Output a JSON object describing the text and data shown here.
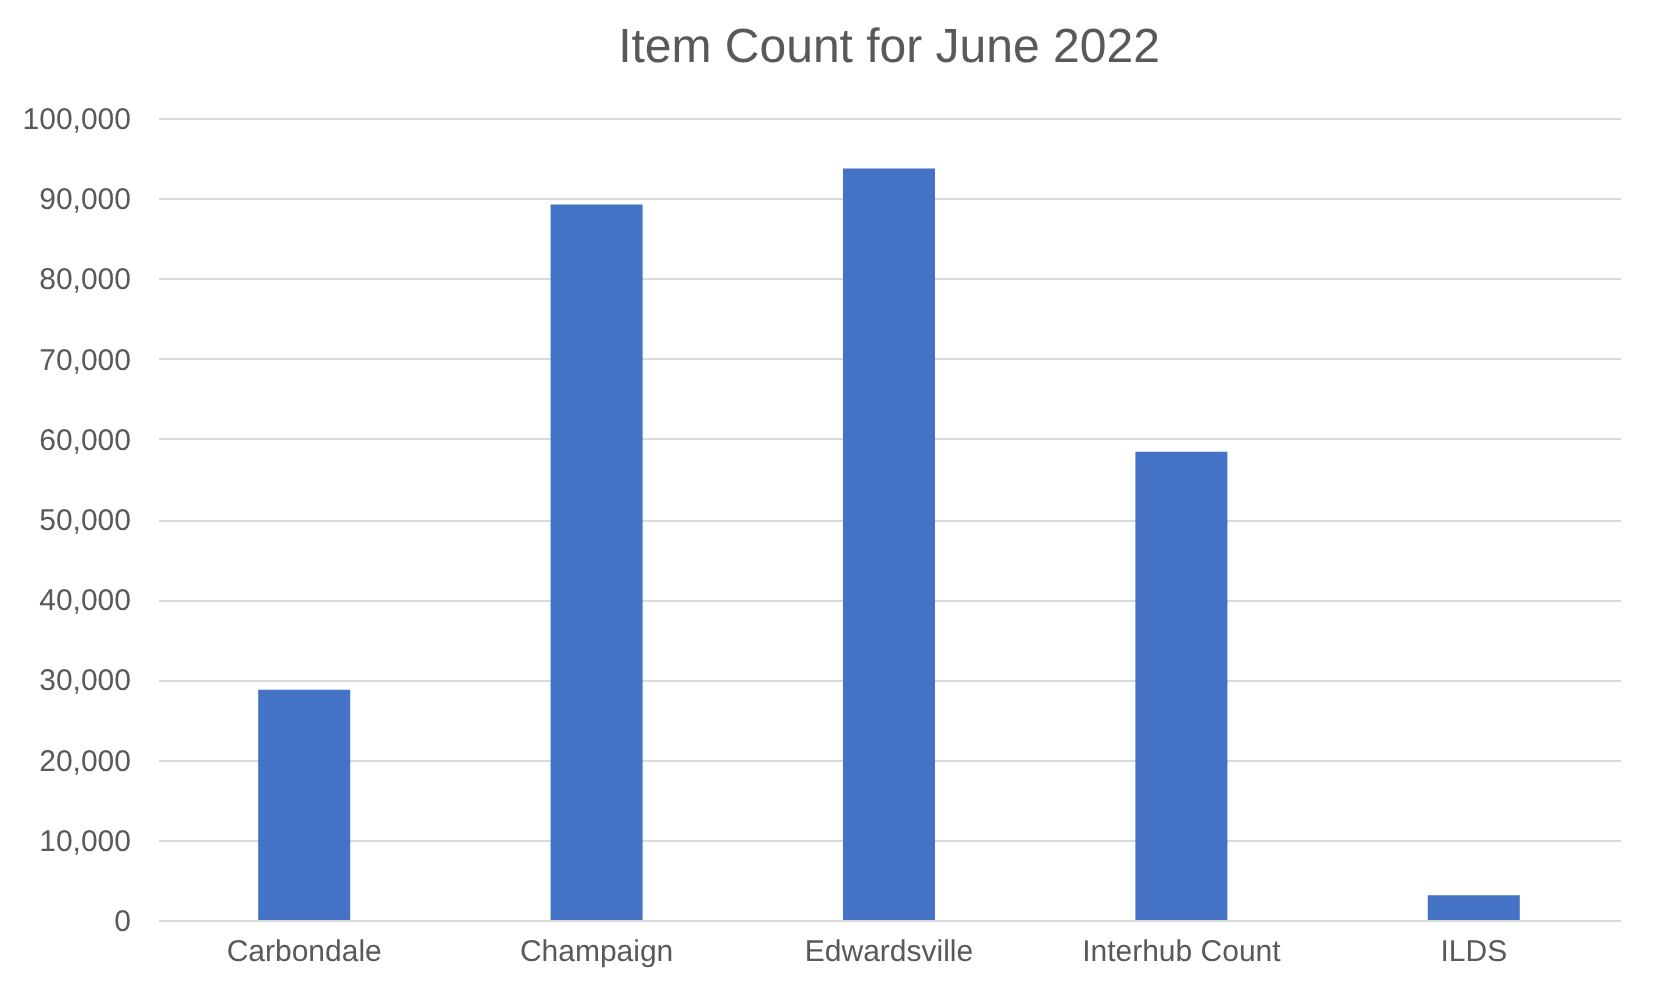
{
  "chart_data": {
    "type": "bar",
    "title": "Item Count for June 2022",
    "categories": [
      "Carbondale",
      "Champaign",
      "Edwardsville",
      "Interhub Count",
      "ILDS"
    ],
    "values": [
      28700,
      89200,
      93700,
      58400,
      3100
    ],
    "color": "#4472c4",
    "ylim": [
      0,
      100000
    ],
    "yticks": [
      0,
      {
        "value": 10000,
        "label": "10,000"
      },
      {
        "value": 20000,
        "label": "20,000"
      },
      {
        "value": 30000,
        "label": "30,000"
      },
      {
        "value": 40000,
        "label": "40,000"
      },
      {
        "value": 50000,
        "label": "50,000"
      },
      {
        "value": 60000,
        "label": "60,000"
      },
      {
        "value": 70000,
        "label": "70,000"
      },
      {
        "value": 80000,
        "label": "80,000"
      },
      {
        "value": 90000,
        "label": "90,000"
      },
      {
        "value": 100000,
        "label": "100,000"
      }
    ],
    "grid": "y"
  }
}
